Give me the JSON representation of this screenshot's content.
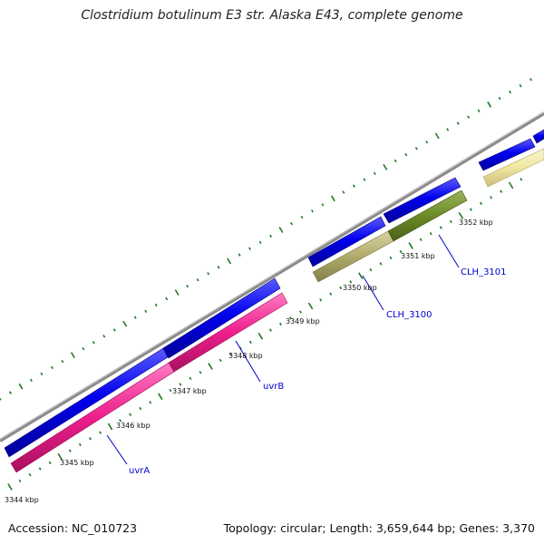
{
  "title": "Clostridium botulinum E3 str. Alaska E43, complete genome",
  "footer": {
    "accession_label": "Accession:",
    "accession": "NC_010723",
    "topology_label": "Topology:",
    "topology": "circular",
    "length_label": "Length:",
    "length": "3,659,644 bp",
    "genes_label": "Genes:",
    "genes": "3,370"
  },
  "colors": {
    "forward_cds": "#0000ee",
    "uvr_genes": "#ee1e8c",
    "clh_3100": "#b0aa6a",
    "clh_3101": "#6c8a25",
    "pale_gene": "#f0e6a0",
    "backbone": "#8a8a8a",
    "ticks": "#1e7a1e",
    "label_text": "#0000cc"
  },
  "tick_labels": [
    {
      "text": "3344 kbp"
    },
    {
      "text": "3345 kbp"
    },
    {
      "text": "3346 kbp"
    },
    {
      "text": "3347 kbp"
    },
    {
      "text": "3348 kbp"
    },
    {
      "text": "3349 kbp"
    },
    {
      "text": "3350 kbp"
    },
    {
      "text": "3351 kbp"
    },
    {
      "text": "3352 kbp"
    }
  ],
  "gene_labels": [
    {
      "text": "uvrA"
    },
    {
      "text": "uvrB"
    },
    {
      "text": "CLH_3100"
    },
    {
      "text": "CLH_3101"
    }
  ]
}
